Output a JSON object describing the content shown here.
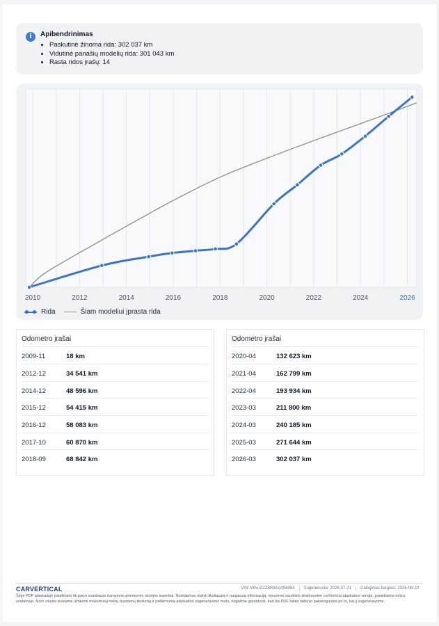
{
  "summary": {
    "title": "Apibendrinimas",
    "items": [
      "Paskutinė žinoma rida: 302 037 km",
      "Vidutinė panašių modelių rida: 301 043 km",
      "Rasta ridos įrašų: 14"
    ]
  },
  "chart_data": {
    "type": "line",
    "x_ticks": [
      "2010",
      "2012",
      "2014",
      "2016",
      "2018",
      "2020",
      "2022",
      "2024",
      "2026"
    ],
    "x_range": [
      2009.7,
      2026.4
    ],
    "y_range": [
      0,
      315000
    ],
    "grid": true,
    "legend_position": "bottom-left",
    "series": [
      {
        "name": "Rida",
        "color": "#3b73c6",
        "style": "dotted-markers",
        "points": [
          {
            "x": 2009.85,
            "y": 18
          },
          {
            "x": 2012.95,
            "y": 34541
          },
          {
            "x": 2014.95,
            "y": 48596
          },
          {
            "x": 2015.95,
            "y": 54415
          },
          {
            "x": 2016.95,
            "y": 58083
          },
          {
            "x": 2017.8,
            "y": 60870
          },
          {
            "x": 2018.7,
            "y": 68842
          },
          {
            "x": 2020.3,
            "y": 132623
          },
          {
            "x": 2021.3,
            "y": 162799
          },
          {
            "x": 2022.3,
            "y": 193934
          },
          {
            "x": 2023.2,
            "y": 211800
          },
          {
            "x": 2024.2,
            "y": 240185
          },
          {
            "x": 2025.2,
            "y": 271644
          },
          {
            "x": 2026.2,
            "y": 302037
          }
        ]
      },
      {
        "name": "Šiam modeliui įprasta rida",
        "color": "#8a8a8a",
        "style": "line",
        "points": [
          {
            "x": 2009.85,
            "y": 0
          },
          {
            "x": 2010.5,
            "y": 22000
          },
          {
            "x": 2012,
            "y": 55000
          },
          {
            "x": 2014,
            "y": 97000
          },
          {
            "x": 2016,
            "y": 138000
          },
          {
            "x": 2018,
            "y": 175000
          },
          {
            "x": 2020,
            "y": 205000
          },
          {
            "x": 2022,
            "y": 233000
          },
          {
            "x": 2024,
            "y": 260000
          },
          {
            "x": 2026.4,
            "y": 293000
          }
        ]
      }
    ],
    "highlighted_tick": "2026",
    "highlight_color": "#3b73c6"
  },
  "tables": {
    "title": "Odometro įrašai",
    "left": [
      {
        "date": "2009-11",
        "km": "18 km"
      },
      {
        "date": "2012-12",
        "km": "34 541 km"
      },
      {
        "date": "2014-12",
        "km": "48 596 km"
      },
      {
        "date": "2015-12",
        "km": "54 415 km"
      },
      {
        "date": "2016-12",
        "km": "58 083 km"
      },
      {
        "date": "2017-10",
        "km": "60 870 km"
      },
      {
        "date": "2018-09",
        "km": "68 842 km"
      }
    ],
    "right": [
      {
        "date": "2020-04",
        "km": "132 623 km"
      },
      {
        "date": "2021-04",
        "km": "162 799 km"
      },
      {
        "date": "2022-04",
        "km": "193 934 km"
      },
      {
        "date": "2023-03",
        "km": "211 800 km"
      },
      {
        "date": "2024-03",
        "km": "240 185 km"
      },
      {
        "date": "2025-03",
        "km": "271 644 km"
      },
      {
        "date": "2026-03",
        "km": "302 037 km"
      }
    ]
  },
  "footer": {
    "logo": "CARVERTICAL",
    "vin": "VIN: WAUZZZ8R9AA056953",
    "generated": "Sugeneruota: 2026-07-21",
    "valid_until": "Galiojimas baigiasi: 2026-08-20",
    "disclaimer": "Šioje PDF ataskaitoje pateikiami tik patys svarbiausi transporto priemonės istorijos aspektai. Norėdamas matyti tiksliausią ir naujausią informaciją, visuomet naudokis skaitmenine carVertical ataskaitos versija, pasiekiama mūsų svetainėje. Nors visada siekiame užtikrinti maksimalų mūsų duomenų tikslumą ir patikimumą ataskaitos sugeneravimo metu, negalime garantuoti, kad šis PDF failas nebuvo pakoreguotas po to, kai jį sugeneravome."
  }
}
